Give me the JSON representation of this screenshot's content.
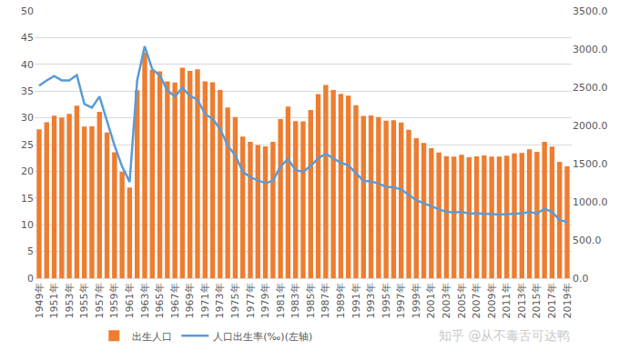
{
  "chart_data": {
    "type": "bar",
    "categories": [
      "1949年",
      null,
      "1951年",
      null,
      "1953年",
      null,
      "1955年",
      null,
      "1957年",
      null,
      "1959年",
      null,
      "1961年",
      null,
      "1963年",
      null,
      "1965年",
      null,
      "1967年",
      null,
      "1969年",
      null,
      "1971年",
      null,
      "1973年",
      null,
      "1975年",
      null,
      "1977年",
      null,
      "1979年",
      null,
      "1981年",
      null,
      "1983年",
      null,
      "1985年",
      null,
      "1987年",
      null,
      "1989年",
      null,
      "1991年",
      null,
      "1993年",
      null,
      "1995年",
      null,
      "1997年",
      null,
      "1999年",
      null,
      "2001年",
      null,
      "2003年",
      null,
      "2005年",
      null,
      "2007年",
      null,
      "2009年",
      null,
      "2011年",
      null,
      "2013年",
      null,
      "2015年",
      null,
      "2017年",
      null,
      "2019年"
    ],
    "series": [
      {
        "name": "出生人口",
        "type": "bar",
        "axis": "y2",
        "color": "#ED7D31",
        "values": [
          1950,
          2042,
          2128,
          2105,
          2151,
          2260,
          1984,
          1989,
          2178,
          1909,
          1650,
          1392,
          1187,
          2460,
          2954,
          2729,
          2709,
          2577,
          2563,
          2757,
          2715,
          2736,
          2578,
          2566,
          2463,
          2235,
          2109,
          1853,
          1786,
          1745,
          1727,
          1787,
          2082,
          2247,
          2058,
          2055,
          2202,
          2411,
          2529,
          2464,
          2414,
          2391,
          2265,
          2125,
          2132,
          2110,
          2063,
          2067,
          2038,
          1942,
          1834,
          1771,
          1702,
          1647,
          1599,
          1593,
          1617,
          1584,
          1594,
          1608,
          1591,
          1592,
          1604,
          1635,
          1640,
          1687,
          1655,
          1786,
          1723,
          1523,
          1465
        ]
      },
      {
        "name": "人口出生率(‰)(左轴)",
        "type": "line",
        "axis": "y",
        "color": "#5B9BD5",
        "values": [
          36.0,
          37.0,
          37.8,
          37.0,
          37.0,
          38.0,
          32.6,
          31.9,
          34.0,
          29.2,
          24.8,
          20.9,
          18.0,
          37.0,
          43.4,
          39.1,
          37.9,
          35.1,
          34.0,
          35.6,
          34.1,
          33.4,
          30.7,
          29.8,
          27.9,
          24.8,
          23.0,
          19.9,
          18.9,
          18.3,
          17.8,
          18.2,
          20.9,
          22.3,
          20.2,
          19.9,
          21.0,
          22.4,
          23.3,
          22.4,
          21.6,
          21.1,
          19.7,
          18.2,
          18.1,
          17.7,
          17.1,
          17.0,
          16.6,
          15.6,
          14.6,
          14.0,
          13.4,
          12.9,
          12.4,
          12.3,
          12.4,
          12.1,
          12.1,
          12.1,
          12.0,
          11.9,
          12.0,
          12.1,
          12.1,
          12.4,
          12.1,
          13.0,
          12.4,
          10.9,
          10.5
        ]
      }
    ],
    "ylim": [
      0,
      50
    ],
    "yticks": [
      0,
      5,
      10,
      15,
      20,
      25,
      30,
      35,
      40,
      45,
      50
    ],
    "y2lim": [
      0,
      3500
    ],
    "y2ticks": [
      {
        "value": 0,
        "label": "0.0"
      },
      {
        "value": 500,
        "label": "500.0"
      },
      {
        "value": 1000,
        "label": "1000.0"
      },
      {
        "value": 1500,
        "label": "1500.0"
      },
      {
        "value": 2000,
        "label": "2000.0"
      },
      {
        "value": 2500,
        "label": "2500.0"
      },
      {
        "value": 3000,
        "label": "3000.0"
      },
      {
        "value": 3500,
        "label": "3500.0"
      }
    ],
    "grid": true,
    "legend": "bottom",
    "annotations": [
      "知乎 @从不毒舌可达鸭"
    ]
  }
}
